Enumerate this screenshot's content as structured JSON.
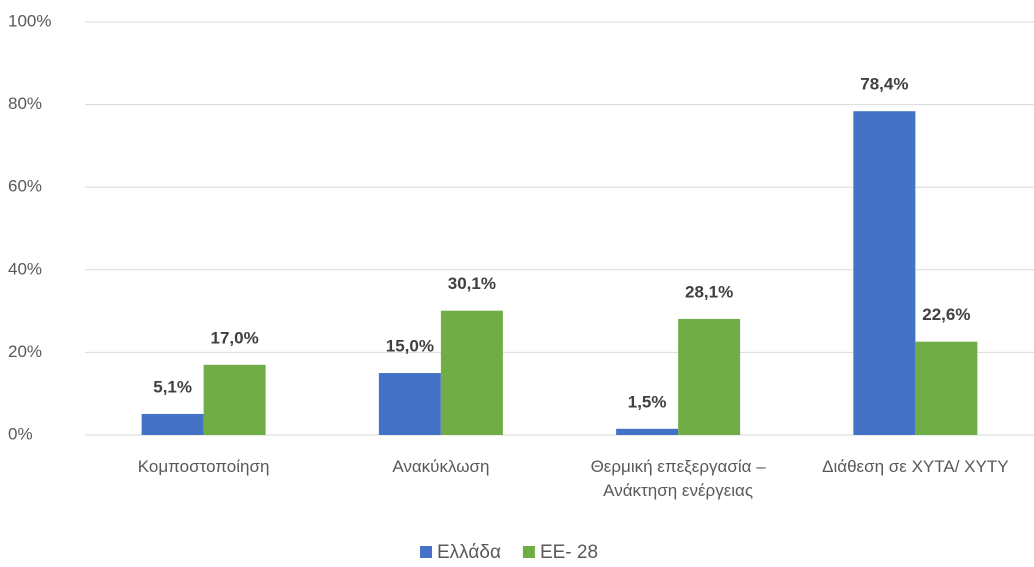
{
  "chart_data": {
    "type": "bar",
    "categories": [
      "Κομποστοποίηση",
      "Ανακύκλωση",
      "Θερμική επεξεργασία – Ανάκτηση ενέργειας",
      "Διάθεση σε ΧΥΤΑ/ ΧΥΤΥ"
    ],
    "series": [
      {
        "name": "Ελλάδα",
        "color": "#4472c4",
        "values": [
          5.1,
          15.0,
          1.5,
          78.4
        ],
        "value_labels": [
          "5,1%",
          "15,0%",
          "1,5%",
          "78,4%"
        ]
      },
      {
        "name": "ΕΕ- 28",
        "color": "#70ad47",
        "values": [
          17.0,
          30.1,
          28.1,
          22.6
        ],
        "value_labels": [
          "17,0%",
          "30,1%",
          "28,1%",
          "22,6%"
        ]
      }
    ],
    "ylim": [
      0,
      100
    ],
    "yticks": [
      {
        "value": 0,
        "label": "0%"
      },
      {
        "value": 20,
        "label": "20%"
      },
      {
        "value": 40,
        "label": "40%"
      },
      {
        "value": 60,
        "label": "60%"
      },
      {
        "value": 80,
        "label": "80%"
      },
      {
        "value": 100,
        "label": "100%"
      }
    ],
    "grid": true,
    "legend": "bottom"
  }
}
